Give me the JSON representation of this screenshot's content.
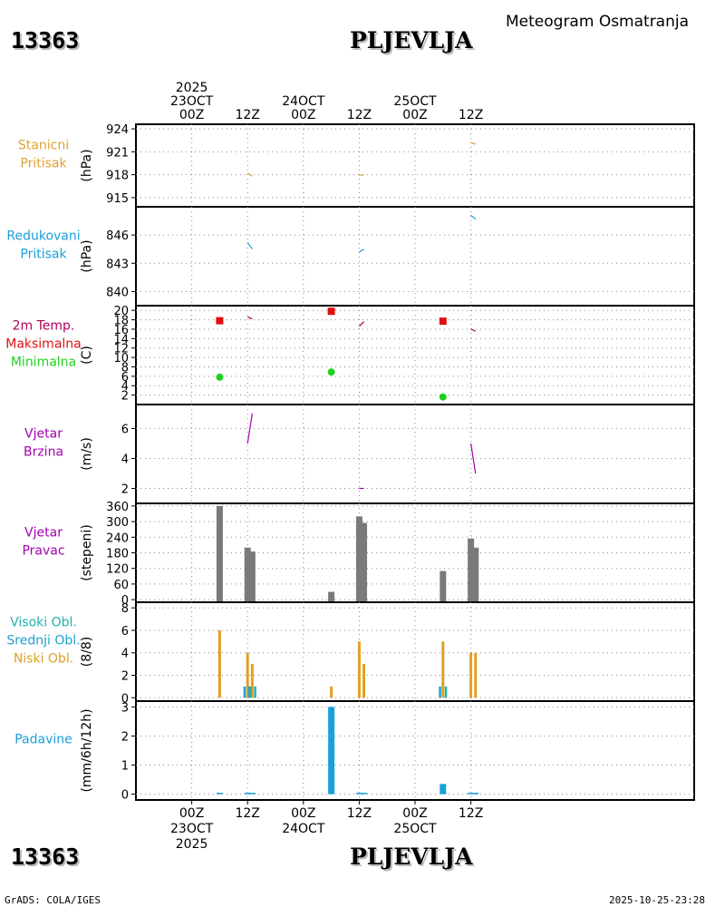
{
  "header": {
    "station_id": "13363",
    "station_name": "PLJEVLJA",
    "chart_title": "Meteogram Osmatranja"
  },
  "footer": {
    "station_id": "13363",
    "station_name": "PLJEVLJA",
    "source": "GrADS: COLA/IGES",
    "timestamp": "2025-10-25-23:28"
  },
  "colors": {
    "pressure": "#e0a030",
    "reduced": "#1aa0d8",
    "temp": "#b0005a",
    "tmax": "#e01010",
    "tmin": "#20d020",
    "wind": "#a000b0",
    "dir": "#7a7a7a",
    "high_cloud": "#20b0b0",
    "mid_cloud": "#20a0d0",
    "low_cloud": "#e0a020",
    "precip": "#1aa0d8"
  },
  "chart_data": {
    "type": "meteogram",
    "time_axis": {
      "range_hours": [
        -12,
        108
      ],
      "top_labels": [
        {
          "h": 0,
          "lines": [
            "2025",
            "23OCT",
            "00Z"
          ]
        },
        {
          "h": 12,
          "lines": [
            "12Z"
          ]
        },
        {
          "h": 24,
          "lines": [
            "24OCT",
            "00Z"
          ]
        },
        {
          "h": 36,
          "lines": [
            "12Z"
          ]
        },
        {
          "h": 48,
          "lines": [
            "25OCT",
            "00Z"
          ]
        },
        {
          "h": 60,
          "lines": [
            "12Z"
          ]
        }
      ],
      "bottom_labels": [
        {
          "h": 0,
          "lines": [
            "00Z",
            "23OCT",
            "2025"
          ]
        },
        {
          "h": 12,
          "lines": [
            "12Z"
          ]
        },
        {
          "h": 24,
          "lines": [
            "00Z",
            "24OCT"
          ]
        },
        {
          "h": 36,
          "lines": [
            "12Z"
          ]
        },
        {
          "h": 48,
          "lines": [
            "00Z",
            "25OCT"
          ]
        },
        {
          "h": 60,
          "lines": [
            "12Z"
          ]
        }
      ]
    },
    "panels": [
      {
        "id": "pressure",
        "labels": [
          {
            "text": "Stanicni",
            "color": "#e0a030"
          },
          {
            "text": "Pritisak",
            "color": "#e0a030"
          }
        ],
        "unit": "(hPa)",
        "ylim": [
          913.8,
          924.6
        ],
        "ticks": [
          "915",
          "918",
          "921",
          "924"
        ],
        "tick_values": [
          915,
          918,
          921,
          924
        ],
        "segments": [
          {
            "h1": 12,
            "v1": 918.2,
            "h2": 13,
            "v2": 917.8,
            "color": "#e0a030"
          },
          {
            "h1": 36,
            "v1": 917.9,
            "h2": 37,
            "v2": 918.0,
            "color": "#e0a030"
          },
          {
            "h1": 60,
            "v1": 922.2,
            "h2": 61,
            "v2": 922.0,
            "color": "#e0a030"
          }
        ]
      },
      {
        "id": "reduced",
        "labels": [
          {
            "text": "Redukovani",
            "color": "#1aa0d8"
          },
          {
            "text": "Pritisak",
            "color": "#1aa0d8"
          }
        ],
        "unit": "(hPa)",
        "ylim": [
          838.5,
          849.0
        ],
        "ticks": [
          "840",
          "843",
          "846"
        ],
        "tick_values": [
          840,
          843,
          846
        ],
        "segments": [
          {
            "h1": 12,
            "v1": 845.2,
            "h2": 13,
            "v2": 844.5,
            "color": "#1aa0d8"
          },
          {
            "h1": 36,
            "v1": 844.2,
            "h2": 37,
            "v2": 844.5,
            "color": "#1aa0d8"
          },
          {
            "h1": 60,
            "v1": 848.1,
            "h2": 61,
            "v2": 847.7,
            "color": "#1aa0d8"
          }
        ]
      },
      {
        "id": "temperature",
        "labels": [
          {
            "text": "2m Temp.",
            "color": "#b0005a"
          },
          {
            "text": "Maksimalna",
            "color": "#e01010"
          },
          {
            "text": "Minimalna",
            "color": "#20d020"
          }
        ],
        "unit": "(C)",
        "ylim": [
          0,
          21
        ],
        "ticks": [
          "2",
          "4",
          "6",
          "8",
          "10",
          "12",
          "14",
          "16",
          "18",
          "20"
        ],
        "tick_values": [
          2,
          4,
          6,
          8,
          10,
          12,
          14,
          16,
          18,
          20
        ],
        "segments": [
          {
            "h1": 12,
            "v1": 18.6,
            "h2": 13,
            "v2": 18.2,
            "color": "#b0005a"
          },
          {
            "h1": 36,
            "v1": 16.6,
            "h2": 37,
            "v2": 17.6,
            "color": "#b0005a"
          },
          {
            "h1": 60,
            "v1": 16.0,
            "h2": 61,
            "v2": 15.6,
            "color": "#b0005a"
          }
        ],
        "tmax": [
          {
            "h": 6,
            "v": 17.8
          },
          {
            "h": 30,
            "v": 19.8
          },
          {
            "h": 54,
            "v": 17.7
          }
        ],
        "tmin": [
          {
            "h": 6,
            "v": 5.8
          },
          {
            "h": 30,
            "v": 6.9
          },
          {
            "h": 54,
            "v": 1.6
          }
        ]
      },
      {
        "id": "wind_speed",
        "labels": [
          {
            "text": "Vjetar",
            "color": "#a000b0"
          },
          {
            "text": "Brzina",
            "color": "#a000b0"
          }
        ],
        "unit": "(m/s)",
        "ylim": [
          1.0,
          7.6
        ],
        "ticks": [
          "2",
          "4",
          "6"
        ],
        "tick_values": [
          2,
          4,
          6
        ],
        "segments": [
          {
            "h1": 12,
            "v1": 5.0,
            "h2": 13,
            "v2": 7.0,
            "color": "#a000b0"
          },
          {
            "h1": 36,
            "v1": 2.0,
            "h2": 37,
            "v2": 2.0,
            "color": "#a000b0"
          },
          {
            "h1": 60,
            "v1": 5.0,
            "h2": 61,
            "v2": 3.0,
            "color": "#a000b0"
          }
        ]
      },
      {
        "id": "wind_dir",
        "labels": [
          {
            "text": "Vjetar",
            "color": "#a000b0"
          },
          {
            "text": "Pravac",
            "color": "#a000b0"
          }
        ],
        "unit": "(stepeni)",
        "ylim": [
          -10,
          370
        ],
        "ticks": [
          "0",
          "60",
          "120",
          "180",
          "240",
          "300",
          "360"
        ],
        "tick_values": [
          0,
          60,
          120,
          180,
          240,
          300,
          360
        ],
        "bars": [
          {
            "h": 6,
            "v": 360
          },
          {
            "h": 12,
            "v": 200
          },
          {
            "h": 13,
            "v": 185
          },
          {
            "h": 30,
            "v": 30
          },
          {
            "h": 36,
            "v": 320
          },
          {
            "h": 37,
            "v": 295
          },
          {
            "h": 54,
            "v": 110
          },
          {
            "h": 60,
            "v": 235
          },
          {
            "h": 61,
            "v": 200
          }
        ]
      },
      {
        "id": "clouds",
        "labels": [
          {
            "text": "Visoki Obl.",
            "color": "#20b0b0"
          },
          {
            "text": "Srednji Obl.",
            "color": "#20a0d0"
          },
          {
            "text": "Niski Obl.",
            "color": "#e0a020"
          }
        ],
        "unit": "(8/8)",
        "ylim": [
          -0.3,
          8.5
        ],
        "ticks": [
          "0",
          "2",
          "4",
          "6",
          "8"
        ],
        "tick_values": [
          0,
          2,
          4,
          6,
          8
        ],
        "low": [
          {
            "h": 6,
            "v": 6
          },
          {
            "h": 12,
            "v": 4
          },
          {
            "h": 13,
            "v": 3
          },
          {
            "h": 30,
            "v": 1
          },
          {
            "h": 36,
            "v": 5
          },
          {
            "h": 37,
            "v": 3
          },
          {
            "h": 54,
            "v": 5
          },
          {
            "h": 60,
            "v": 4
          },
          {
            "h": 61,
            "v": 4
          }
        ],
        "mid": [
          {
            "h": 12,
            "v": 1
          },
          {
            "h": 13,
            "v": 1
          },
          {
            "h": 54,
            "v": 1
          }
        ],
        "high": [
          {
            "h": 12,
            "v": 1
          },
          {
            "h": 13,
            "v": 1
          },
          {
            "h": 54,
            "v": 1
          }
        ]
      },
      {
        "id": "precip",
        "labels": [
          {
            "text": "Padavine",
            "color": "#1aa0d8"
          }
        ],
        "unit": "(mm/6h/12h)",
        "ylim": [
          -0.2,
          3.2
        ],
        "ticks": [
          "0",
          "1",
          "2",
          "3"
        ],
        "tick_values": [
          0,
          1,
          2,
          3
        ],
        "bars": [
          {
            "h": 6,
            "v": 0.02
          },
          {
            "h": 12,
            "v": 0.02
          },
          {
            "h": 13,
            "v": 0.02
          },
          {
            "h": 30,
            "v": 3.0
          },
          {
            "h": 36,
            "v": 0.02
          },
          {
            "h": 37,
            "v": 0.02
          },
          {
            "h": 54,
            "v": 0.35
          },
          {
            "h": 60,
            "v": 0.02
          },
          {
            "h": 61,
            "v": 0.02
          }
        ]
      }
    ]
  }
}
